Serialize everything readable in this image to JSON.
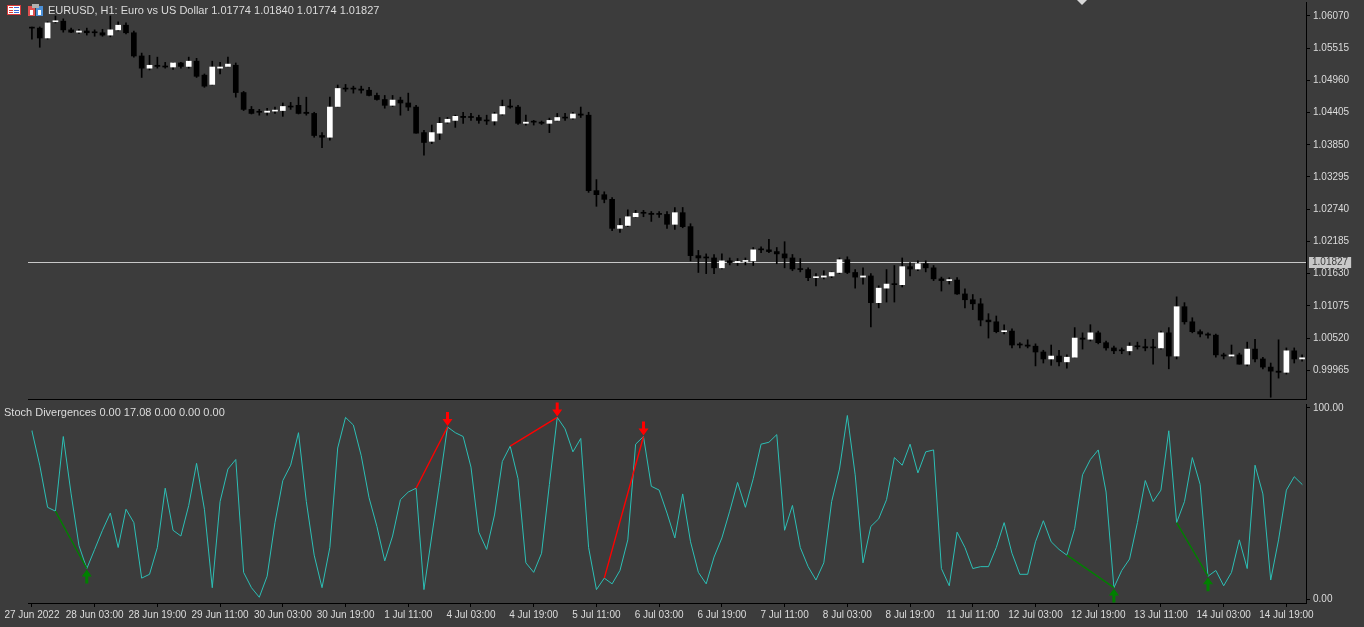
{
  "chart_data": [
    {
      "type": "candlestick",
      "title": "EURUSD, H1: Euro vs US Dollar 1.01774 1.01840 1.01774 1.01827",
      "categories": [
        null,
        null,
        null,
        null,
        null,
        null,
        null,
        null,
        null,
        null,
        null,
        null,
        null,
        null,
        null,
        null,
        null,
        null,
        null,
        null,
        null,
        null,
        null,
        null,
        null,
        null,
        null,
        null,
        null,
        null,
        null,
        null,
        null,
        null,
        null,
        null,
        null,
        null,
        null,
        null,
        null,
        null,
        null,
        null,
        null,
        null,
        null,
        null,
        null,
        null,
        null,
        null,
        null,
        null,
        null,
        null,
        null,
        null,
        null,
        null,
        null,
        null,
        null,
        null,
        null,
        null,
        null,
        null,
        null,
        null,
        null,
        null,
        null,
        null,
        null,
        null,
        null,
        null,
        null,
        null,
        null,
        null,
        null,
        null,
        null,
        null,
        null,
        null,
        null,
        null,
        null,
        null,
        null,
        null,
        null,
        null,
        null,
        null,
        null,
        null,
        null,
        null,
        null,
        null,
        null,
        null,
        null,
        null,
        null,
        null,
        null,
        null,
        null,
        null,
        null,
        null,
        null,
        null,
        null,
        null,
        null,
        null,
        null,
        null,
        null,
        null,
        null,
        null,
        null,
        null,
        null,
        null,
        null,
        null,
        null,
        null,
        null,
        null,
        null,
        null,
        null,
        null,
        null,
        null,
        null,
        null,
        null,
        null,
        null,
        null,
        null,
        null,
        null,
        null,
        null,
        null,
        null,
        null,
        null,
        null,
        null,
        null,
        null
      ],
      "ohlc": [
        [
          1.0586,
          1.0588,
          1.0567,
          1.0586
        ],
        [
          1.0586,
          1.0588,
          1.0553,
          1.0569
        ],
        [
          1.0569,
          1.0597,
          1.0567,
          1.0595
        ],
        [
          1.0597,
          1.0607,
          1.0595,
          1.0598
        ],
        [
          1.0598,
          1.0602,
          1.0579,
          1.0583
        ],
        [
          1.0583,
          1.0586,
          1.0578,
          1.0579
        ],
        [
          1.0579,
          1.0584,
          1.0577,
          1.0581
        ],
        [
          1.0581,
          1.0586,
          1.0574,
          1.0578
        ],
        [
          1.0578,
          1.0583,
          1.0572,
          1.0578
        ],
        [
          1.0578,
          1.0584,
          1.0572,
          1.0574
        ],
        [
          1.0574,
          1.0607,
          1.0571,
          1.0583
        ],
        [
          1.0583,
          1.0597,
          1.0581,
          1.0591
        ],
        [
          1.0591,
          1.0595,
          1.0576,
          1.0578
        ],
        [
          1.0578,
          1.0581,
          1.0536,
          1.0538
        ],
        [
          1.0538,
          1.0543,
          1.0501,
          1.0517
        ],
        [
          1.0517,
          1.0539,
          1.0514,
          1.0522
        ],
        [
          1.0522,
          1.0536,
          1.0517,
          1.052
        ],
        [
          1.052,
          1.0527,
          1.0517,
          1.0519
        ],
        [
          1.0519,
          1.0527,
          1.0515,
          1.0526
        ],
        [
          1.0526,
          1.0527,
          1.0517,
          1.052
        ],
        [
          1.052,
          1.0536,
          1.0517,
          1.0529
        ],
        [
          1.0529,
          1.0534,
          1.0501,
          1.0503
        ],
        [
          1.0505,
          1.0507,
          1.0484,
          1.0486
        ],
        [
          1.0489,
          1.0529,
          1.0488,
          1.0519
        ],
        [
          1.0517,
          1.0527,
          1.0507,
          1.0519
        ],
        [
          1.052,
          1.0536,
          1.0519,
          1.0524
        ],
        [
          1.0522,
          1.0526,
          1.0467,
          1.0475
        ],
        [
          1.0475,
          1.0477,
          1.0444,
          1.0446
        ],
        [
          1.0446,
          1.0451,
          1.0438,
          1.0439
        ],
        [
          1.0441,
          1.0446,
          1.0436,
          1.0441
        ],
        [
          1.0441,
          1.0448,
          1.0436,
          1.0443
        ],
        [
          1.0443,
          1.045,
          1.0439,
          1.0444
        ],
        [
          1.0444,
          1.0457,
          1.0434,
          1.0451
        ],
        [
          1.0451,
          1.0458,
          1.0446,
          1.045
        ],
        [
          1.0453,
          1.0467,
          1.0438,
          1.0439
        ],
        [
          1.0441,
          1.0467,
          1.0436,
          1.0439
        ],
        [
          1.0439,
          1.0441,
          1.0398,
          1.0401
        ],
        [
          1.0401,
          1.0406,
          1.038,
          1.0398
        ],
        [
          1.0398,
          1.0467,
          1.0393,
          1.045
        ],
        [
          1.0451,
          1.0488,
          1.045,
          1.0482
        ],
        [
          1.0482,
          1.0489,
          1.0477,
          1.0481
        ],
        [
          1.0481,
          1.0486,
          1.0474,
          1.0481
        ],
        [
          1.0481,
          1.0486,
          1.0474,
          1.0479
        ],
        [
          1.0479,
          1.0484,
          1.0469,
          1.047
        ],
        [
          1.047,
          1.0474,
          1.0462,
          1.0463
        ],
        [
          1.0463,
          1.047,
          1.0448,
          1.0453
        ],
        [
          1.0453,
          1.047,
          1.0451,
          1.0462
        ],
        [
          1.0462,
          1.0467,
          1.0436,
          1.0457
        ],
        [
          1.0457,
          1.0474,
          1.0444,
          1.045
        ],
        [
          1.045,
          1.0453,
          1.0405,
          1.0405
        ],
        [
          1.0406,
          1.041,
          1.0367,
          1.0389
        ],
        [
          1.0391,
          1.0419,
          1.0387,
          1.0406
        ],
        [
          1.0405,
          1.0432,
          1.0394,
          1.0422
        ],
        [
          1.0424,
          1.0432,
          1.0422,
          1.0429
        ],
        [
          1.0427,
          1.0436,
          1.0415,
          1.0434
        ],
        [
          1.0434,
          1.0441,
          1.0422,
          1.0432
        ],
        [
          1.0432,
          1.0439,
          1.0427,
          1.0432
        ],
        [
          1.0432,
          1.0436,
          1.0422,
          1.0427
        ],
        [
          1.0427,
          1.0436,
          1.042,
          1.0426
        ],
        [
          1.0426,
          1.0441,
          1.0419,
          1.0438
        ],
        [
          1.0438,
          1.0462,
          1.0436,
          1.0451
        ],
        [
          1.0451,
          1.0463,
          1.0448,
          1.045
        ],
        [
          1.045,
          1.0453,
          1.042,
          1.0422
        ],
        [
          1.0422,
          1.0436,
          1.0419,
          1.0424
        ],
        [
          1.0424,
          1.0427,
          1.0419,
          1.0424
        ],
        [
          1.0424,
          1.0426,
          1.042,
          1.0422
        ],
        [
          1.0422,
          1.0431,
          1.0406,
          1.0427
        ],
        [
          1.0427,
          1.0439,
          1.0426,
          1.0432
        ],
        [
          1.0432,
          1.0439,
          1.0427,
          1.0431
        ],
        [
          1.0431,
          1.0441,
          1.0429,
          1.0438
        ],
        [
          1.0438,
          1.045,
          1.0432,
          1.0436
        ],
        [
          1.0436,
          1.0441,
          1.0303,
          1.0306
        ],
        [
          1.0306,
          1.0325,
          1.0279,
          1.0299
        ],
        [
          1.0299,
          1.0304,
          1.0285,
          1.0291
        ],
        [
          1.0291,
          1.0294,
          1.0237,
          1.0241
        ],
        [
          1.0241,
          1.0258,
          1.0234,
          1.0246
        ],
        [
          1.0246,
          1.0273,
          1.0244,
          1.0261
        ],
        [
          1.0261,
          1.0272,
          1.026,
          1.0267
        ],
        [
          1.0267,
          1.0272,
          1.0261,
          1.0267
        ],
        [
          1.0267,
          1.027,
          1.0253,
          1.0265
        ],
        [
          1.0265,
          1.027,
          1.026,
          1.0265
        ],
        [
          1.0265,
          1.027,
          1.0241,
          1.0248
        ],
        [
          1.0248,
          1.0277,
          1.0239,
          1.0268
        ],
        [
          1.0268,
          1.0277,
          1.0242,
          1.0244
        ],
        [
          1.0244,
          1.0249,
          1.0185,
          1.0194
        ],
        [
          1.0194,
          1.0203,
          1.0165,
          1.019
        ],
        [
          1.019,
          1.0197,
          1.0163,
          1.019
        ],
        [
          1.019,
          1.0196,
          1.0163,
          1.0173
        ],
        [
          1.0173,
          1.0197,
          1.0171,
          1.0185
        ],
        [
          1.0185,
          1.019,
          1.0178,
          1.0182
        ],
        [
          1.0182,
          1.0189,
          1.0177,
          1.0184
        ],
        [
          1.0184,
          1.019,
          1.0178,
          1.0185
        ],
        [
          1.0185,
          1.0208,
          1.0177,
          1.0204
        ],
        [
          1.0204,
          1.0209,
          1.0199,
          1.0204
        ],
        [
          1.0204,
          1.0222,
          1.0199,
          1.0201
        ],
        [
          1.0201,
          1.0208,
          1.018,
          1.0197
        ],
        [
          1.0197,
          1.0218,
          1.0173,
          1.019
        ],
        [
          1.019,
          1.0196,
          1.0168,
          1.0171
        ],
        [
          1.0171,
          1.0189,
          1.0166,
          1.017
        ],
        [
          1.017,
          1.0173,
          1.0151,
          1.0156
        ],
        [
          1.0156,
          1.0163,
          1.0142,
          1.0157
        ],
        [
          1.0157,
          1.0168,
          1.0154,
          1.0159
        ],
        [
          1.0159,
          1.0166,
          1.0156,
          1.0165
        ],
        [
          1.0165,
          1.019,
          1.0163,
          1.0187
        ],
        [
          1.0187,
          1.0192,
          1.0163,
          1.0165
        ],
        [
          1.0165,
          1.017,
          1.0138,
          1.0157
        ],
        [
          1.0157,
          1.0173,
          1.0145,
          1.0159
        ],
        [
          1.0159,
          1.0163,
          1.0071,
          1.0113
        ],
        [
          1.0113,
          1.0142,
          1.0104,
          1.0138
        ],
        [
          1.0138,
          1.017,
          1.0114,
          1.0145
        ],
        [
          1.0145,
          1.0177,
          1.0114,
          1.0144
        ],
        [
          1.0144,
          1.019,
          1.014,
          1.0175
        ],
        [
          1.0175,
          1.0182,
          1.0159,
          1.0171
        ],
        [
          1.0171,
          1.0185,
          1.0168,
          1.018
        ],
        [
          1.018,
          1.0185,
          1.0166,
          1.0173
        ],
        [
          1.0173,
          1.0177,
          1.0151,
          1.0154
        ],
        [
          1.0154,
          1.0157,
          1.0133,
          1.0151
        ],
        [
          1.0151,
          1.0156,
          1.0145,
          1.0152
        ],
        [
          1.0152,
          1.0156,
          1.0127,
          1.0128
        ],
        [
          1.0128,
          1.0137,
          1.0104,
          1.0118
        ],
        [
          1.0118,
          1.0127,
          1.0101,
          1.0111
        ],
        [
          1.0111,
          1.012,
          1.0073,
          1.0083
        ],
        [
          1.0083,
          1.0094,
          1.0052,
          1.008
        ],
        [
          1.008,
          1.009,
          1.0061,
          1.0063
        ],
        [
          1.0063,
          1.0075,
          1.0059,
          1.0064
        ],
        [
          1.0064,
          1.0068,
          1.0035,
          1.004
        ],
        [
          1.004,
          1.0044,
          1.0035,
          1.004
        ],
        [
          1.004,
          1.0049,
          1.0035,
          1.0038
        ],
        [
          1.0038,
          1.0042,
          1.0004,
          1.0028
        ],
        [
          1.0028,
          1.0031,
          1.0009,
          1.0016
        ],
        [
          1.0016,
          1.004,
          1.0005,
          1.0021
        ],
        [
          1.0021,
          1.0031,
          1.0004,
          1.0011
        ],
        [
          1.0011,
          1.0023,
          1.0,
          1.0019
        ],
        [
          1.0019,
          1.007,
          1.0018,
          1.0052
        ],
        [
          1.0052,
          1.0061,
          1.0033,
          1.005
        ],
        [
          1.005,
          1.0075,
          1.0047,
          1.0061
        ],
        [
          1.0061,
          1.0064,
          1.0042,
          1.0044
        ],
        [
          1.0044,
          1.0047,
          1.0031,
          1.0035
        ],
        [
          1.0035,
          1.0038,
          1.0025,
          1.003
        ],
        [
          1.003,
          1.0035,
          1.0025,
          1.003
        ],
        [
          1.003,
          1.0044,
          1.0023,
          1.0038
        ],
        [
          1.0038,
          1.0045,
          1.0033,
          1.0037
        ],
        [
          1.0037,
          1.005,
          1.003,
          1.0035
        ],
        [
          1.0035,
          1.005,
          1.0007,
          1.0035
        ],
        [
          1.0035,
          1.0064,
          1.0033,
          1.0061
        ],
        [
          1.0061,
          1.007,
          0.9999,
          1.0021
        ],
        [
          1.0021,
          1.0123,
          1.0016,
          1.0106
        ],
        [
          1.0106,
          1.0113,
          1.0076,
          1.008
        ],
        [
          1.008,
          1.0087,
          1.0061,
          1.0063
        ],
        [
          1.0063,
          1.0066,
          1.0054,
          1.0059
        ],
        [
          1.0059,
          1.0061,
          1.0052,
          1.0057
        ],
        [
          1.0057,
          1.0059,
          1.0019,
          1.0023
        ],
        [
          1.0023,
          1.0026,
          1.0016,
          1.0021
        ],
        [
          1.0021,
          1.004,
          1.0019,
          1.0023
        ],
        [
          1.0023,
          1.0026,
          1.0007,
          1.0007
        ],
        [
          1.0007,
          1.0045,
          1.0004,
          1.0033
        ],
        [
          1.0033,
          1.005,
          1.0011,
          1.0016
        ],
        [
          1.0016,
          1.0019,
          0.9999,
          1.0002
        ],
        [
          1.0002,
          1.0009,
          0.995,
          0.9995
        ],
        [
          0.9995,
          1.0049,
          0.9983,
          0.9993
        ],
        [
          0.9993,
          1.0035,
          0.999,
          1.003
        ],
        [
          1.003,
          1.0035,
          1.0009,
          1.0016
        ],
        [
          1.0016,
          1.0023,
          1.0012,
          1.0018
        ]
      ],
      "color": "#000000",
      "colors": [
        "#000000",
        "#000000",
        "#ffffff",
        "#ffffff",
        "#000000",
        "#000000",
        "#ffffff",
        "#000000",
        "#000000",
        "#000000",
        "#ffffff",
        "#ffffff",
        "#000000",
        "#000000",
        "#000000",
        "#ffffff",
        "#000000",
        "#000000",
        "#ffffff",
        "#000000",
        "#ffffff",
        "#000000",
        "#000000",
        "#ffffff",
        "#ffffff",
        "#ffffff",
        "#000000",
        "#000000",
        "#000000",
        "#000000",
        "#ffffff",
        "#ffffff",
        "#ffffff",
        "#000000",
        "#000000",
        "#000000",
        "#000000",
        "#000000",
        "#ffffff",
        "#ffffff",
        "#000000",
        "#000000",
        "#000000",
        "#000000",
        "#000000",
        "#000000",
        "#ffffff",
        "#000000",
        "#000000",
        "#000000",
        "#000000",
        "#ffffff",
        "#ffffff",
        "#ffffff",
        "#ffffff",
        "#000000",
        "#000000",
        "#000000",
        "#000000",
        "#ffffff",
        "#ffffff",
        "#000000",
        "#000000",
        "#ffffff",
        "#000000",
        "#000000",
        "#ffffff",
        "#ffffff",
        "#000000",
        "#ffffff",
        "#000000",
        "#000000",
        "#000000",
        "#000000",
        "#000000",
        "#ffffff",
        "#ffffff",
        "#ffffff",
        "#000000",
        "#000000",
        "#000000",
        "#000000",
        "#ffffff",
        "#000000",
        "#000000",
        "#000000",
        "#000000",
        "#000000",
        "#ffffff",
        "#000000",
        "#ffffff",
        "#ffffff",
        "#ffffff",
        "#000000",
        "#000000",
        "#000000",
        "#000000",
        "#000000",
        "#000000",
        "#000000",
        "#ffffff",
        "#ffffff",
        "#ffffff",
        "#ffffff",
        "#000000",
        "#000000",
        "#ffffff",
        "#000000",
        "#ffffff",
        "#ffffff",
        "#000000",
        "#ffffff",
        "#000000",
        "#ffffff",
        "#000000",
        "#000000",
        "#000000",
        "#ffffff",
        "#000000",
        "#000000",
        "#000000",
        "#000000",
        "#000000",
        "#000000",
        "#ffffff",
        "#000000",
        "#000000",
        "#000000",
        "#000000",
        "#000000",
        "#ffffff",
        "#000000",
        "#ffffff",
        "#ffffff",
        "#000000",
        "#ffffff",
        "#000000",
        "#000000",
        "#000000",
        "#000000",
        "#ffffff",
        "#000000",
        "#000000",
        "#000000",
        "#ffffff",
        "#000000",
        "#ffffff",
        "#000000",
        "#000000",
        "#000000",
        "#000000",
        "#000000",
        "#000000",
        "#ffffff",
        "#000000",
        "#ffffff",
        "#000000",
        "#000000",
        "#000000",
        "#000000",
        "#ffffff",
        "#000000",
        "#ffffff"
      ],
      "ylim": [
        0.9947,
        1.0631
      ],
      "yticks": [
        {
          "value": 1.0607,
          "label": "1.06070"
        },
        {
          "value": 1.05515,
          "label": "1.05515"
        },
        {
          "value": 1.0496,
          "label": "1.04960"
        },
        {
          "value": 1.04405,
          "label": "1.04405"
        },
        {
          "value": 1.0385,
          "label": "1.03850"
        },
        {
          "value": 1.03295,
          "label": "1.03295"
        },
        {
          "value": 1.0274,
          "label": "1.02740"
        },
        {
          "value": 1.02185,
          "label": "1.02185"
        },
        {
          "value": 1.0163,
          "label": "1.01630"
        },
        {
          "value": 1.01075,
          "label": "1.01075"
        },
        {
          "value": 1.0052,
          "label": "1.00520"
        },
        {
          "value": 0.99965,
          "label": "0.99965"
        }
      ],
      "ref_lines": [
        {
          "axis": "y",
          "value": 1.01827,
          "label": "1.01827",
          "color": "#c8c8c8"
        }
      ],
      "tick_labels": "y"
    },
    {
      "type": "line",
      "title": "Stoch Divergences 0.00 17.08 0.00 0.00 0.00",
      "categories": [
        "27 Jun 2022",
        null,
        null,
        null,
        null,
        null,
        null,
        null,
        "28 Jun 03:00",
        null,
        null,
        null,
        null,
        null,
        null,
        null,
        "28 Jun 19:00",
        null,
        null,
        null,
        null,
        null,
        null,
        null,
        "29 Jun 11:00",
        null,
        null,
        null,
        null,
        null,
        null,
        null,
        "30 Jun 03:00",
        null,
        null,
        null,
        null,
        null,
        null,
        null,
        "30 Jun 19:00",
        null,
        null,
        null,
        null,
        null,
        null,
        null,
        "1 Jul 11:00",
        null,
        null,
        null,
        null,
        null,
        null,
        null,
        "4 Jul 03:00",
        null,
        null,
        null,
        null,
        null,
        null,
        null,
        "4 Jul 19:00",
        null,
        null,
        null,
        null,
        null,
        null,
        null,
        "5 Jul 11:00",
        null,
        null,
        null,
        null,
        null,
        null,
        null,
        "6 Jul 03:00",
        null,
        null,
        null,
        null,
        null,
        null,
        null,
        "6 Jul 19:00",
        null,
        null,
        null,
        null,
        null,
        null,
        null,
        "7 Jul 11:00",
        null,
        null,
        null,
        null,
        null,
        null,
        null,
        "8 Jul 03:00",
        null,
        null,
        null,
        null,
        null,
        null,
        null,
        "8 Jul 19:00",
        null,
        null,
        null,
        null,
        null,
        null,
        null,
        "11 Jul 11:00",
        null,
        null,
        null,
        null,
        null,
        null,
        null,
        "12 Jul 03:00",
        null,
        null,
        null,
        null,
        null,
        null,
        null,
        "12 Jul 19:00",
        null,
        null,
        null,
        null,
        null,
        null,
        null,
        "13 Jul 11:00",
        null,
        null,
        null,
        null,
        null,
        null,
        null,
        "14 Jul 03:00",
        null,
        null,
        null,
        null,
        null,
        null,
        null,
        "14 Jul 19:00",
        null,
        null
      ],
      "series": [
        {
          "type": "line",
          "color": "#2cbfb5",
          "values": [
            88,
            70,
            48,
            46,
            85,
            55,
            28,
            16,
            26,
            36,
            45,
            27,
            47,
            40,
            11,
            13,
            27,
            58,
            36,
            33,
            49,
            71,
            47,
            6,
            51,
            68,
            73,
            14,
            6,
            1,
            12,
            40,
            62,
            70,
            87,
            51,
            23,
            6,
            27,
            79,
            95,
            91,
            75,
            53,
            38,
            20,
            33,
            52,
            56,
            58,
            5,
            33,
            61,
            90,
            87,
            85,
            69,
            35,
            26,
            44,
            72,
            80,
            63,
            19,
            14,
            24,
            60,
            95,
            89,
            77,
            84,
            27,
            5,
            11,
            8,
            15,
            31,
            81,
            85,
            59,
            57,
            45,
            32,
            55,
            30,
            14,
            8,
            22,
            32,
            46,
            61,
            48,
            63,
            81,
            82,
            86,
            36,
            49,
            27,
            17,
            10,
            19,
            51,
            68,
            96,
            65,
            19,
            38,
            42,
            52,
            74,
            70,
            81,
            66,
            77,
            78,
            16,
            7,
            35,
            27,
            16,
            17,
            17,
            27,
            40,
            24,
            13,
            13,
            30,
            41,
            30,
            26,
            23,
            37,
            65,
            73,
            78,
            56,
            6,
            15,
            21,
            40,
            62,
            51,
            57,
            88,
            40,
            51,
            74,
            60,
            12,
            15,
            7,
            14,
            31,
            16,
            70,
            55,
            10,
            31,
            57,
            64,
            60
          ]
        }
      ],
      "ylim": [
        -2,
        102
      ],
      "yticks": [
        {
          "value": 100,
          "label": "100.00"
        },
        {
          "value": 0,
          "label": "0.00"
        }
      ]
    }
  ]
}
